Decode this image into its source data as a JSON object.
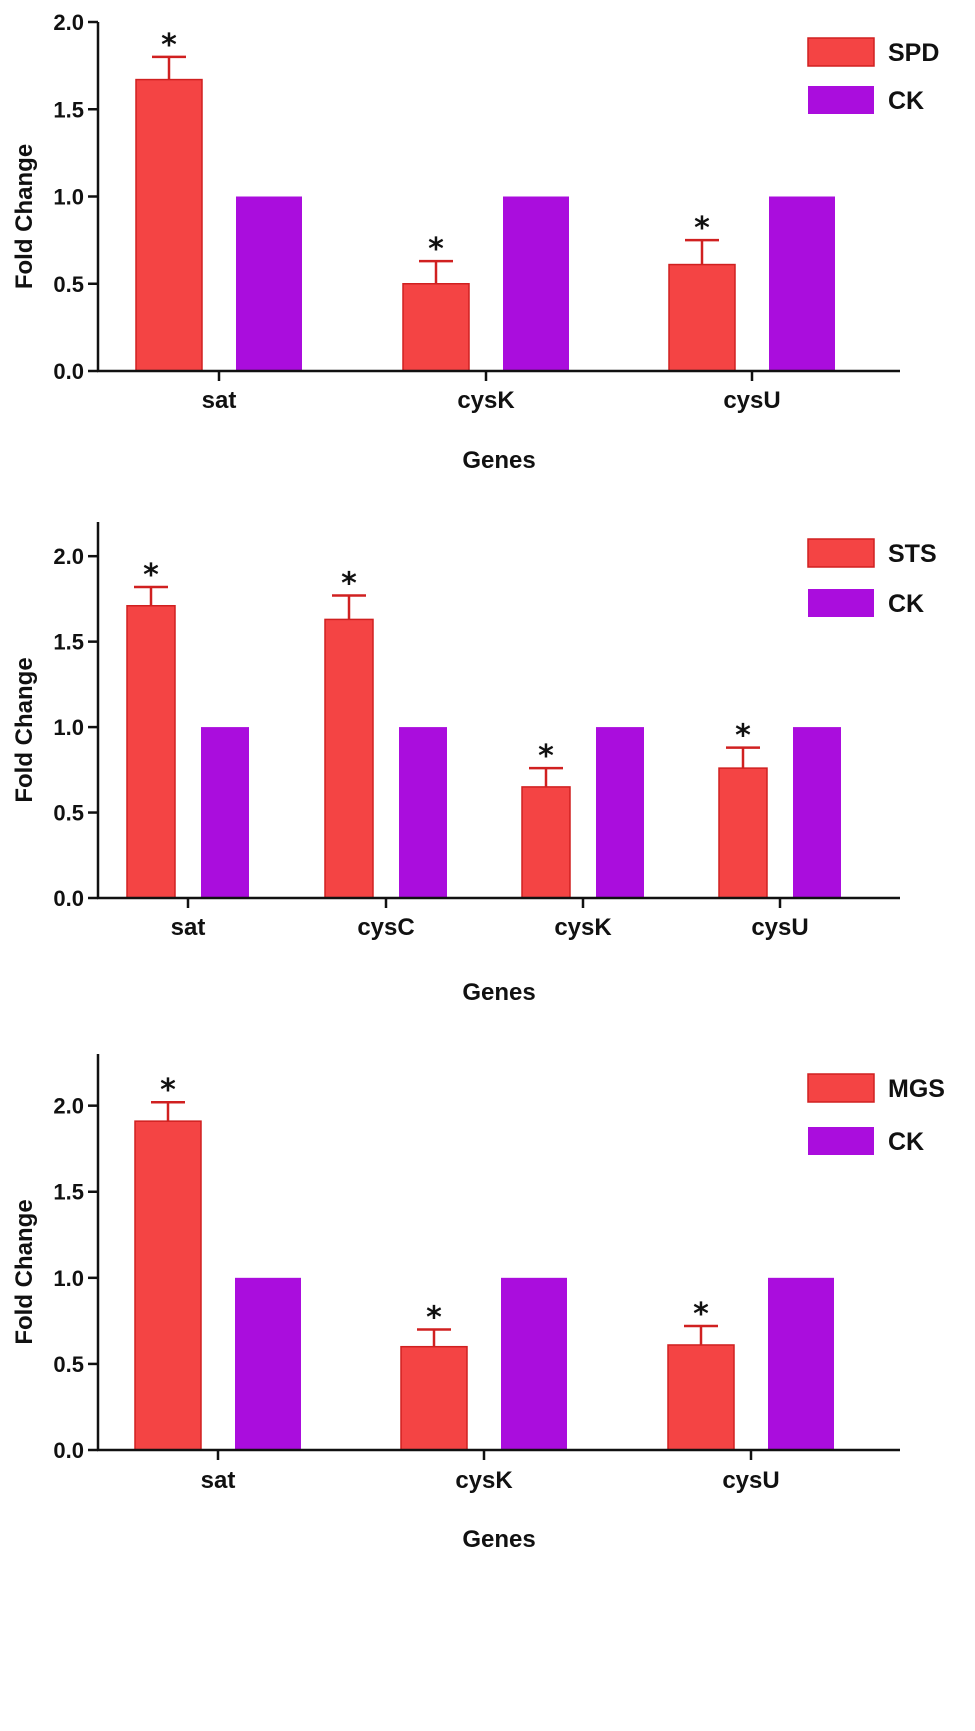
{
  "colors": {
    "treatment": "#f44444",
    "treatment_edge": "#d02020",
    "control": "#aa0ddd",
    "axis": "#111111"
  },
  "chart_data": [
    {
      "type": "bar",
      "title": "",
      "xlabel": "Genes",
      "ylabel": "Fold Change",
      "ylim": [
        0,
        2.0
      ],
      "yticks": [
        "0.0",
        "0.5",
        "1.0",
        "1.5",
        "2.0"
      ],
      "categories": [
        "sat",
        "cysK",
        "cysU"
      ],
      "series": [
        {
          "name": "SPD",
          "values": [
            1.67,
            0.5,
            0.61
          ],
          "errors": [
            0.13,
            0.13,
            0.14
          ],
          "significant": [
            true,
            true,
            true
          ]
        },
        {
          "name": "CK",
          "values": [
            1.0,
            1.0,
            1.0
          ]
        }
      ],
      "significance_marker": "*",
      "legend": "top-right"
    },
    {
      "type": "bar",
      "title": "",
      "xlabel": "Genes",
      "ylabel": "Fold Change",
      "ylim": [
        0,
        2.2
      ],
      "yticks": [
        "0.0",
        "0.5",
        "1.0",
        "1.5",
        "2.0"
      ],
      "categories": [
        "sat",
        "cysC",
        "cysK",
        "cysU"
      ],
      "series": [
        {
          "name": "STS",
          "values": [
            1.71,
            1.63,
            0.65,
            0.76
          ],
          "errors": [
            0.11,
            0.14,
            0.11,
            0.12
          ],
          "significant": [
            true,
            true,
            true,
            true
          ]
        },
        {
          "name": "CK",
          "values": [
            1.0,
            1.0,
            1.0,
            1.0
          ]
        }
      ],
      "significance_marker": "*",
      "legend": "top-right"
    },
    {
      "type": "bar",
      "title": "",
      "xlabel": "Genes",
      "ylabel": "Fold Change",
      "ylim": [
        0,
        2.3
      ],
      "yticks": [
        "0.0",
        "0.5",
        "1.0",
        "1.5",
        "2.0"
      ],
      "categories": [
        "sat",
        "cysK",
        "cysU"
      ],
      "series": [
        {
          "name": "MGS",
          "values": [
            1.91,
            0.6,
            0.61
          ],
          "errors": [
            0.11,
            0.1,
            0.11
          ],
          "significant": [
            true,
            true,
            true
          ]
        },
        {
          "name": "CK",
          "values": [
            1.0,
            1.0,
            1.0
          ]
        }
      ],
      "significance_marker": "*",
      "legend": "top-right"
    }
  ]
}
